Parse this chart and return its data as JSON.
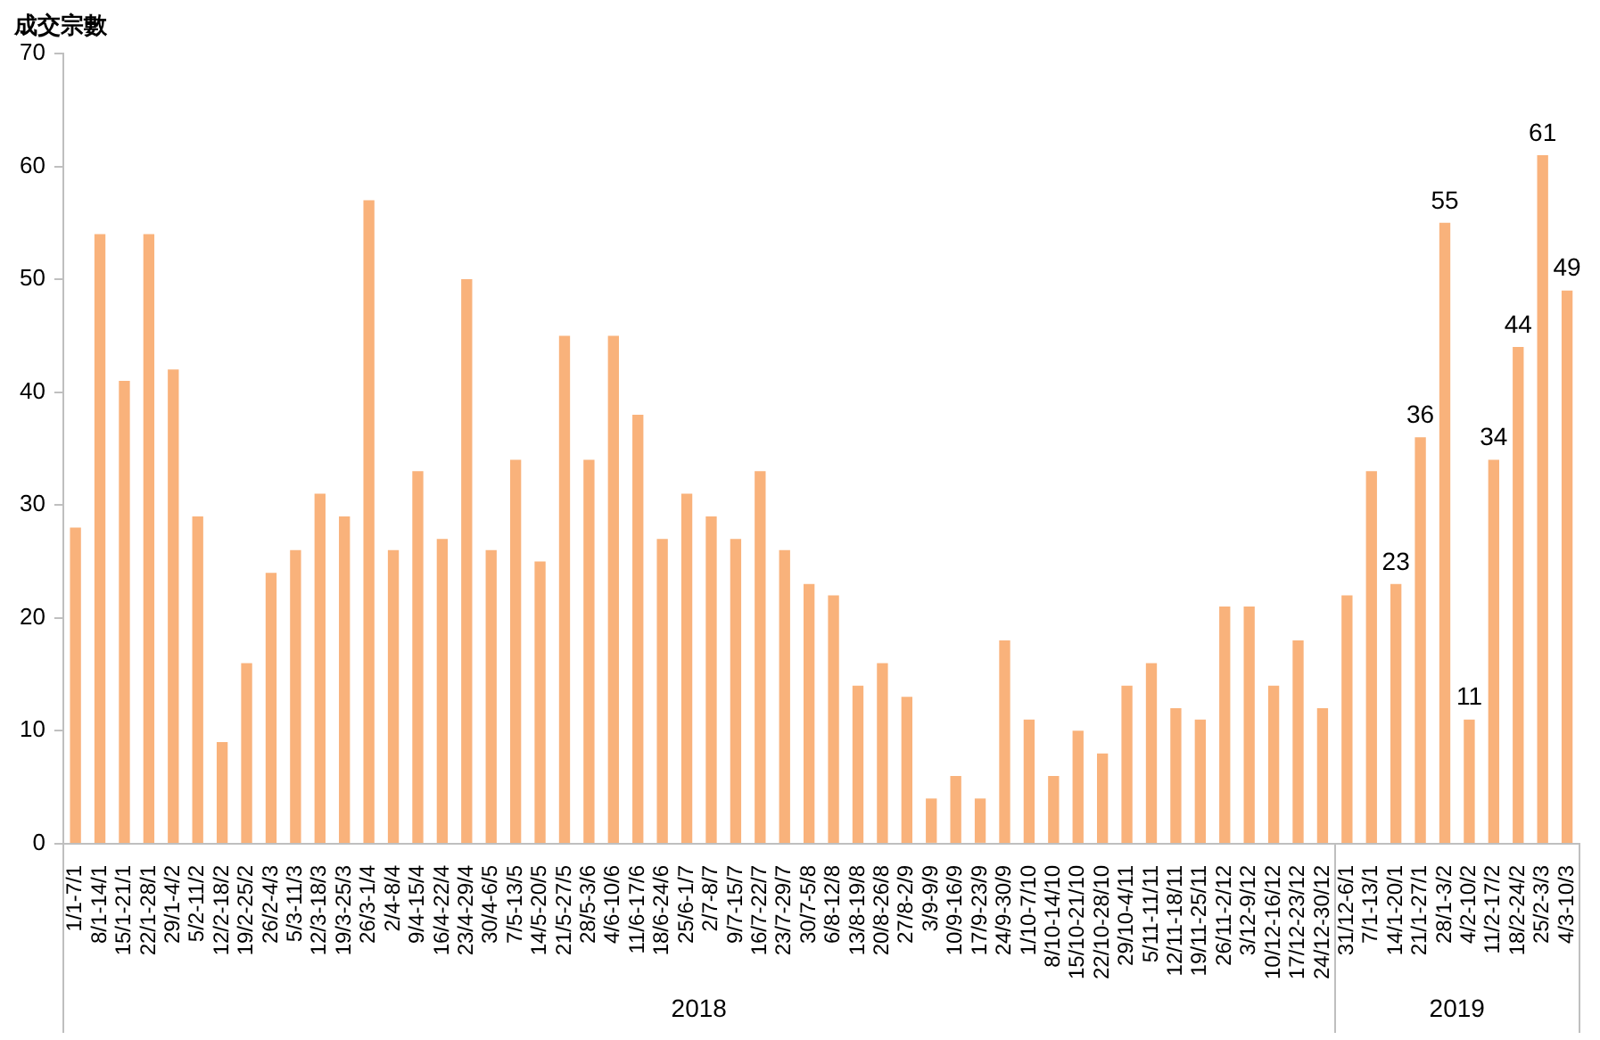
{
  "chart_data": {
    "type": "bar",
    "ylabel": "成交宗數",
    "categories": [
      "1/1-7/1",
      "8/1-14/1",
      "15/1-21/1",
      "22/1-28/1",
      "29/1-4/2",
      "5/2-11/2",
      "12/2-18/2",
      "19/2-25/2",
      "26/2-4/3",
      "5/3-11/3",
      "12/3-18/3",
      "19/3-25/3",
      "26/3-1/4",
      "2/4-8/4",
      "9/4-15/4",
      "16/4-22/4",
      "23/4-29/4",
      "30/4-6/5",
      "7/5-13/5",
      "14/5-20/5",
      "21/5-27/5",
      "28/5-3/6",
      "4/6-10/6",
      "11/6-17/6",
      "18/6-24/6",
      "25/6-1/7",
      "2/7-8/7",
      "9/7-15/7",
      "16/7-22/7",
      "23/7-29/7",
      "30/7-5/8",
      "6/8-12/8",
      "13/8-19/8",
      "20/8-26/8",
      "27/8-2/9",
      "3/9-9/9",
      "10/9-16/9",
      "17/9-23/9",
      "24/9-30/9",
      "1/10-7/10",
      "8/10-14/10",
      "15/10-21/10",
      "22/10-28/10",
      "29/10-4/11",
      "5/11-11/11",
      "12/11-18/11",
      "19/11-25/11",
      "26/11-2/12",
      "3/12-9/12",
      "10/12-16/12",
      "17/12-23/12",
      "24/12-30/12",
      "31/12-6/1",
      "7/1-13/1",
      "14/1-20/1",
      "21/1-27/1",
      "28/1-3/2",
      "4/2-10/2",
      "11/2-17/2",
      "18/2-24/2",
      "25/2-3/3",
      "4/3-10/3"
    ],
    "values": [
      28,
      54,
      41,
      54,
      42,
      29,
      9,
      16,
      24,
      26,
      31,
      29,
      57,
      26,
      33,
      27,
      50,
      26,
      34,
      25,
      45,
      34,
      45,
      38,
      27,
      31,
      29,
      27,
      33,
      26,
      23,
      22,
      14,
      16,
      13,
      4,
      6,
      4,
      18,
      11,
      6,
      10,
      8,
      14,
      16,
      12,
      11,
      21,
      21,
      14,
      18,
      12,
      22,
      33,
      23,
      36,
      55,
      11,
      34,
      44,
      61,
      49
    ],
    "value_labels": [
      null,
      null,
      null,
      null,
      null,
      null,
      null,
      null,
      null,
      null,
      null,
      null,
      null,
      null,
      null,
      null,
      null,
      null,
      null,
      null,
      null,
      null,
      null,
      null,
      null,
      null,
      null,
      null,
      null,
      null,
      null,
      null,
      null,
      null,
      null,
      null,
      null,
      null,
      null,
      null,
      null,
      null,
      null,
      null,
      null,
      null,
      null,
      null,
      null,
      null,
      null,
      null,
      null,
      null,
      "23",
      "36",
      "55",
      "11",
      "34",
      "44",
      "61",
      "49"
    ],
    "color": "#f9b27b",
    "ylim": [
      0,
      70
    ],
    "yticks": [
      0,
      10,
      20,
      30,
      40,
      50,
      60,
      70
    ],
    "grid": false,
    "annotations": [
      "2018",
      "2019"
    ]
  }
}
